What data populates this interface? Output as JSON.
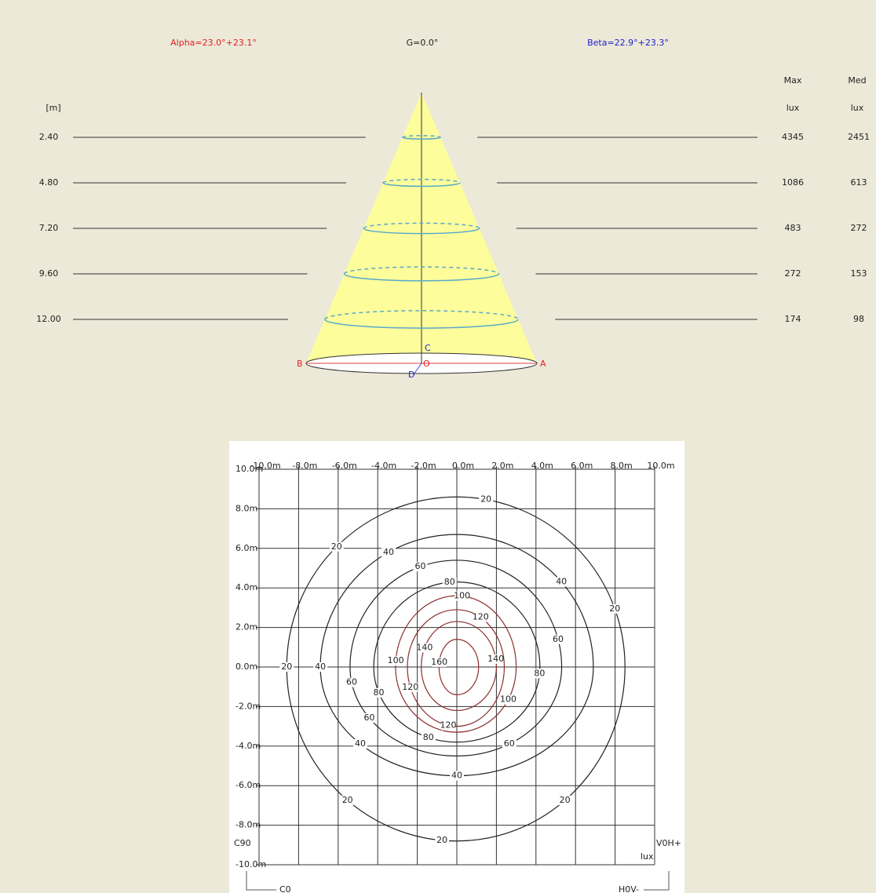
{
  "cone": {
    "alpha": "Alpha=23.0°+23.1°",
    "gamma": "G=0.0°",
    "beta": "Beta=22.9°+23.3°",
    "height_header": "[m]",
    "max_header": "Max",
    "med_header": "Med",
    "max_unit": "lux",
    "med_unit": "lux",
    "rows": [
      {
        "height": "2.40",
        "max": "4345",
        "med": "2451"
      },
      {
        "height": "4.80",
        "max": "1086",
        "med": "613"
      },
      {
        "height": "7.20",
        "max": "483",
        "med": "272"
      },
      {
        "height": "9.60",
        "max": "272",
        "med": "153"
      },
      {
        "height": "12.00",
        "max": "174",
        "med": "98"
      }
    ],
    "points": {
      "a": "A",
      "b": "B",
      "c": "C",
      "d": "D",
      "o": "O"
    }
  },
  "isolux": {
    "xlim": [
      -10,
      10
    ],
    "ylim": [
      -10,
      10
    ],
    "xticks": [
      {
        "value": -10,
        "label": "-10.0m"
      },
      {
        "value": -8,
        "label": "-8.0m"
      },
      {
        "value": -6,
        "label": "-6.0m"
      },
      {
        "value": -4,
        "label": "-4.0m"
      },
      {
        "value": -2,
        "label": "-2.0m"
      },
      {
        "value": 0,
        "label": "0.0m"
      },
      {
        "value": 2,
        "label": "2.0m"
      },
      {
        "value": 4,
        "label": "4.0m"
      },
      {
        "value": 6,
        "label": "6.0m"
      },
      {
        "value": 8,
        "label": "8.0m"
      },
      {
        "value": 10,
        "label": "10.0m"
      }
    ],
    "yticks": [
      {
        "value": 10,
        "label": "10.0m"
      },
      {
        "value": 8,
        "label": "8.0m"
      },
      {
        "value": 6,
        "label": "6.0m"
      },
      {
        "value": 4,
        "label": "4.0m"
      },
      {
        "value": 2,
        "label": "2.0m"
      },
      {
        "value": 0,
        "label": "0.0m"
      },
      {
        "value": -2,
        "label": "-2.0m"
      },
      {
        "value": -4,
        "label": "-4.0m"
      },
      {
        "value": -6,
        "label": "-6.0m"
      },
      {
        "value": -8,
        "label": "-8.0m"
      },
      {
        "value": -10,
        "label": "-10.0m"
      }
    ],
    "contours": [
      {
        "level": 20,
        "left": -8.6,
        "right": 8.5,
        "top": 8.6,
        "bottom": -8.8,
        "color": "#222222"
      },
      {
        "level": 40,
        "left": -6.9,
        "right": 6.9,
        "top": 6.7,
        "bottom": -5.5,
        "color": "#222222"
      },
      {
        "level": 60,
        "left": -5.4,
        "right": 5.3,
        "top": 5.4,
        "bottom": -4.5,
        "color": "#222222"
      },
      {
        "level": 80,
        "left": -4.2,
        "right": 4.2,
        "top": 4.3,
        "bottom": -3.8,
        "color": "#222222"
      },
      {
        "level": 100,
        "left": -3.1,
        "right": 3.0,
        "top": 3.6,
        "bottom": -3.3,
        "color": "#8b2f2f"
      },
      {
        "level": 120,
        "left": -2.5,
        "right": 2.4,
        "top": 2.9,
        "bottom": -3.0,
        "color": "#8b2f2f"
      },
      {
        "level": 140,
        "left": -1.8,
        "right": 2.0,
        "top": 2.3,
        "bottom": -2.2,
        "color": "#8b2f2f"
      },
      {
        "level": 160,
        "left": -0.9,
        "right": 1.1,
        "top": 1.4,
        "bottom": -1.4,
        "color": "#8b2f2f"
      }
    ],
    "c90": "C90",
    "c0": "C0",
    "v0h": "V0H+",
    "h0v": "H0V-",
    "unit": "lux"
  }
}
